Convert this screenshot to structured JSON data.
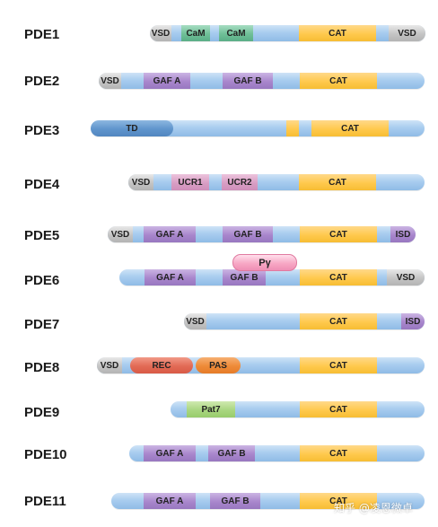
{
  "rows": [
    {
      "label": "PDE1",
      "domains": {
        "vsd_n": "VSD",
        "cam1": "CaM",
        "cam2": "CaM",
        "cat": "CAT",
        "vsd_c": "VSD"
      }
    },
    {
      "label": "PDE2",
      "domains": {
        "vsd_n": "VSD",
        "gaf_a": "GAF A",
        "gaf_b": "GAF B",
        "cat": "CAT"
      }
    },
    {
      "label": "PDE3",
      "domains": {
        "td": "TD",
        "cat": "CAT"
      }
    },
    {
      "label": "PDE4",
      "domains": {
        "vsd_n": "VSD",
        "ucr1": "UCR1",
        "ucr2": "UCR2",
        "cat": "CAT"
      }
    },
    {
      "label": "PDE5",
      "domains": {
        "vsd_n": "VSD",
        "gaf_a": "GAF A",
        "gaf_b": "GAF B",
        "cat": "CAT",
        "isd": "ISD"
      }
    },
    {
      "label": "PDE6",
      "domains": {
        "pgamma": "Pγ",
        "gaf_a": "GAF A",
        "gaf_b": "GAF B",
        "cat": "CAT",
        "vsd_c": "VSD"
      }
    },
    {
      "label": "PDE7",
      "domains": {
        "vsd_n": "VSD",
        "cat": "CAT",
        "isd": "ISD"
      }
    },
    {
      "label": "PDE8",
      "domains": {
        "vsd_n": "VSD",
        "rec": "REC",
        "pas": "PAS",
        "cat": "CAT"
      }
    },
    {
      "label": "PDE9",
      "domains": {
        "pat7": "Pat7",
        "cat": "CAT"
      }
    },
    {
      "label": "PDE10",
      "domains": {
        "gaf_a": "GAF A",
        "gaf_b": "GAF B",
        "cat": "CAT"
      }
    },
    {
      "label": "PDE11",
      "domains": {
        "gaf_a": "GAF A",
        "gaf_b": "GAF B",
        "cat": "CAT"
      }
    }
  ],
  "watermark": "知乎 @凌恩微卓",
  "colors": {
    "backbone": "#a9cdef",
    "vsd_isd": "#c4c4c4",
    "cam": "#6fbf97",
    "cat": "#ffc94d",
    "gaf": "#a886cc",
    "ucr": "#d89ec4",
    "td": "#5f94cc",
    "rec": "#e26a55",
    "pas": "#ee8a38",
    "pat7": "#a9d680",
    "pgamma": "#f7a8c5"
  }
}
